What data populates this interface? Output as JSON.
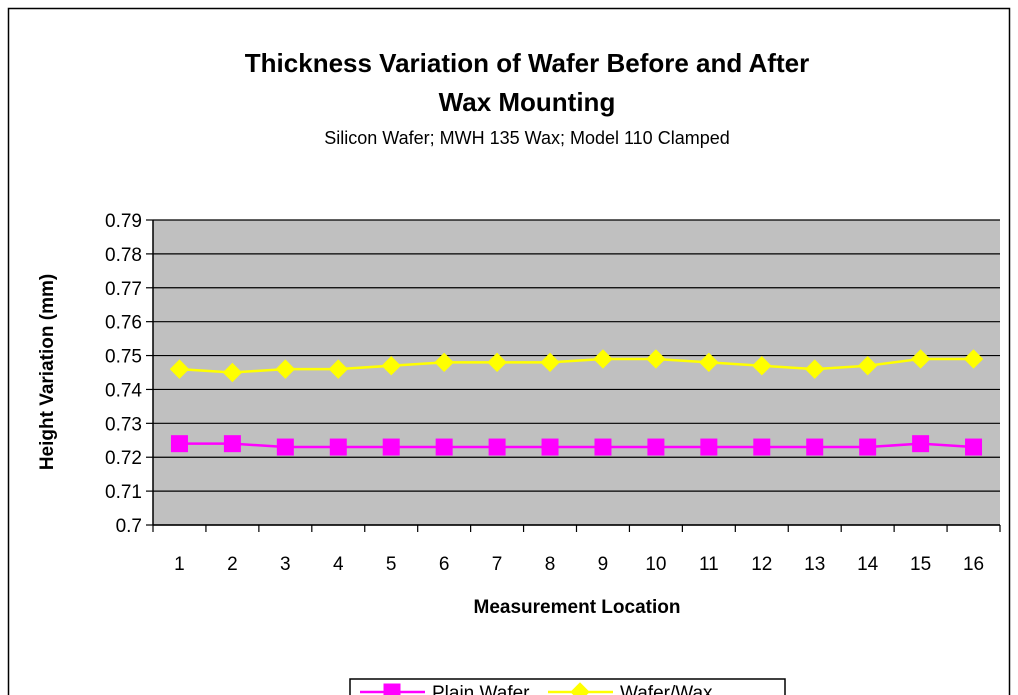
{
  "chart_data": {
    "type": "line",
    "title": [
      "Thickness Variation of Wafer Before and After",
      "Wax Mounting"
    ],
    "subtitle": "Silicon Wafer; MWH 135 Wax; Model 110 Clamped",
    "x_label": "Measurement Location",
    "y_label": "Height Variation (mm)",
    "categories": [
      "1",
      "2",
      "3",
      "4",
      "5",
      "6",
      "7",
      "8",
      "9",
      "10",
      "11",
      "12",
      "13",
      "14",
      "15",
      "16"
    ],
    "series": [
      {
        "name": "Plain Wafer",
        "color": "#ff00ff",
        "marker": "square",
        "values": [
          0.724,
          0.724,
          0.723,
          0.723,
          0.723,
          0.723,
          0.723,
          0.723,
          0.723,
          0.723,
          0.723,
          0.723,
          0.723,
          0.723,
          0.724,
          0.723
        ]
      },
      {
        "name": "Wafer/Wax",
        "color": "#ffff00",
        "marker": "diamond",
        "values": [
          0.746,
          0.745,
          0.746,
          0.746,
          0.747,
          0.748,
          0.748,
          0.748,
          0.749,
          0.749,
          0.748,
          0.747,
          0.746,
          0.747,
          0.749,
          0.749
        ]
      }
    ],
    "ylim": [
      0.7,
      0.79
    ],
    "yticks": [
      0.7,
      0.71,
      0.72,
      0.73,
      0.74,
      0.75,
      0.76,
      0.77,
      0.78,
      0.79
    ],
    "grid": true,
    "plot_background": "#c0c0c0",
    "legend": "bottom"
  }
}
